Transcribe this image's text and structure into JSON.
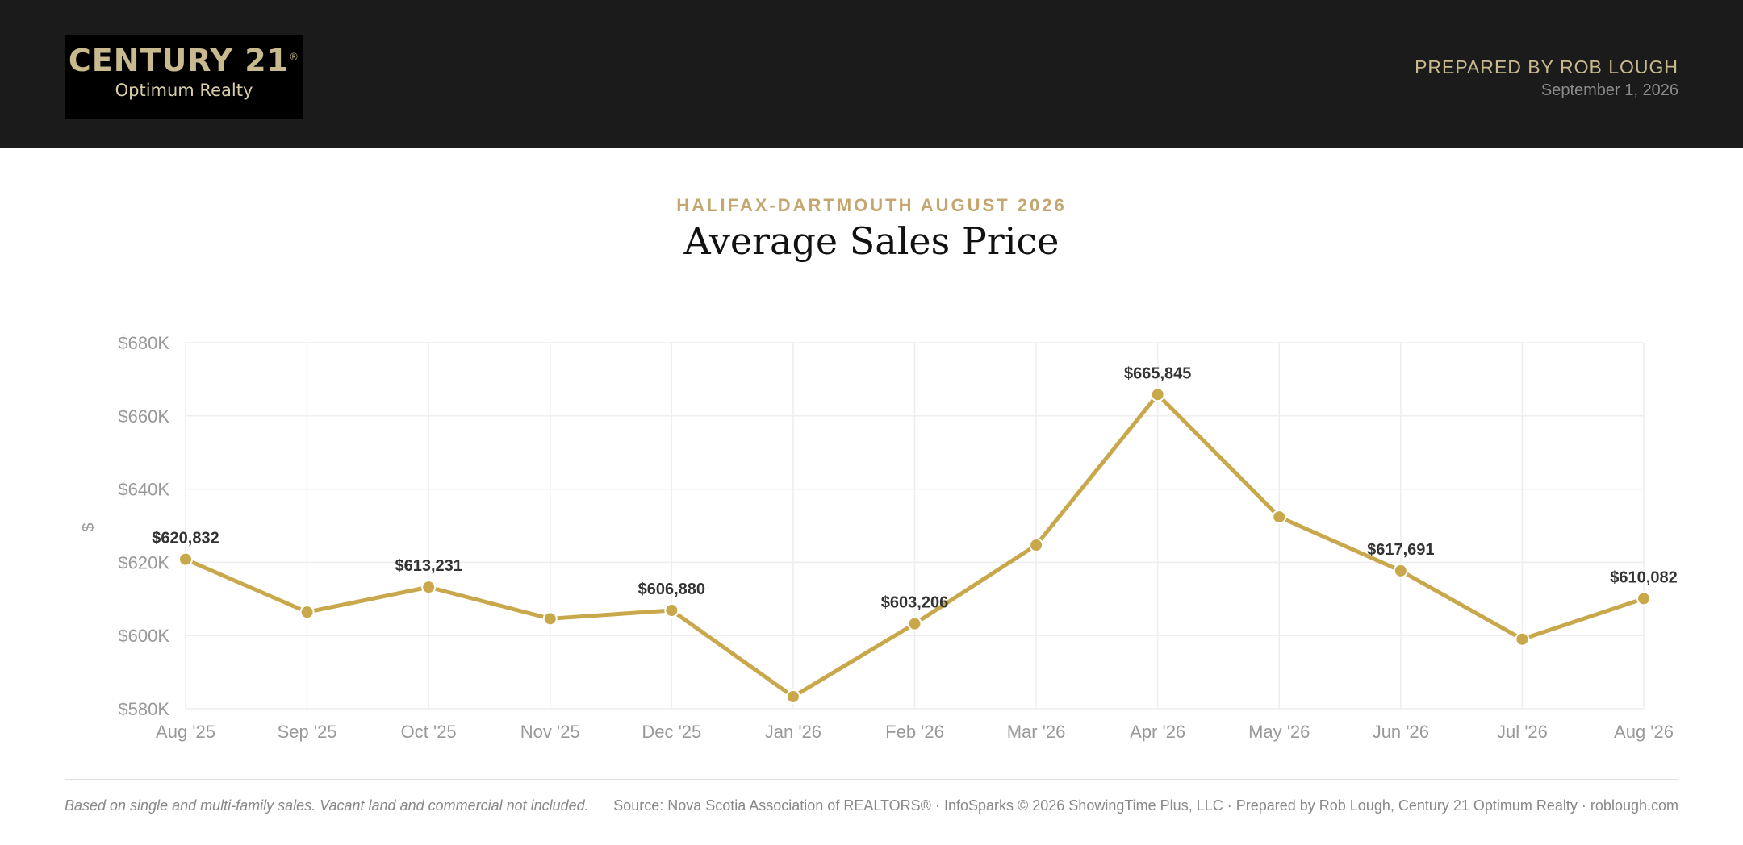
{
  "header": {
    "logo_name": "CENTURY 21",
    "logo_registered": "®",
    "logo_sub": "Optimum Realty",
    "prepared_by": "PREPARED BY ROB LOUGH",
    "date": "September 1, 2026"
  },
  "report": {
    "eyebrow": "HALIFAX-DARTMOUTH AUGUST 2026",
    "title": "Average Sales Price"
  },
  "chart_data": {
    "type": "line",
    "ylabel": "$",
    "ylim": [
      580000,
      680000
    ],
    "yticks": [
      {
        "value": 580000,
        "label": "$580K"
      },
      {
        "value": 600000,
        "label": "$600K"
      },
      {
        "value": 620000,
        "label": "$620K"
      },
      {
        "value": 640000,
        "label": "$640K"
      },
      {
        "value": 660000,
        "label": "$660K"
      },
      {
        "value": 680000,
        "label": "$680K"
      }
    ],
    "grid": true,
    "categories": [
      "Aug '25",
      "Sep '25",
      "Oct '25",
      "Nov '25",
      "Dec '25",
      "Jan '26",
      "Feb '26",
      "Mar '26",
      "Apr '26",
      "May '26",
      "Jun '26",
      "Jul '26",
      "Aug '26"
    ],
    "values": [
      620832,
      606400,
      613231,
      604600,
      606880,
      583300,
      603206,
      624700,
      665845,
      632400,
      617691,
      599000,
      610082
    ],
    "data_labels": [
      "$620,832",
      "",
      "$613,231",
      "",
      "$606,880",
      "",
      "$603,206",
      "",
      "$665,845",
      "",
      "$617,691",
      "",
      "$610,082"
    ],
    "line_color": "#c9a84c",
    "grid_color": "#eeeeee",
    "tick_color": "#999999"
  },
  "footer": {
    "note": "Based on single and multi-family sales. Vacant land and commercial not included.",
    "source": "Source: Nova Scotia Association of REALTORS® · InfoSparks © 2026 ShowingTime Plus, LLC · Prepared by Rob Lough, Century 21 Optimum Realty · roblough.com"
  }
}
